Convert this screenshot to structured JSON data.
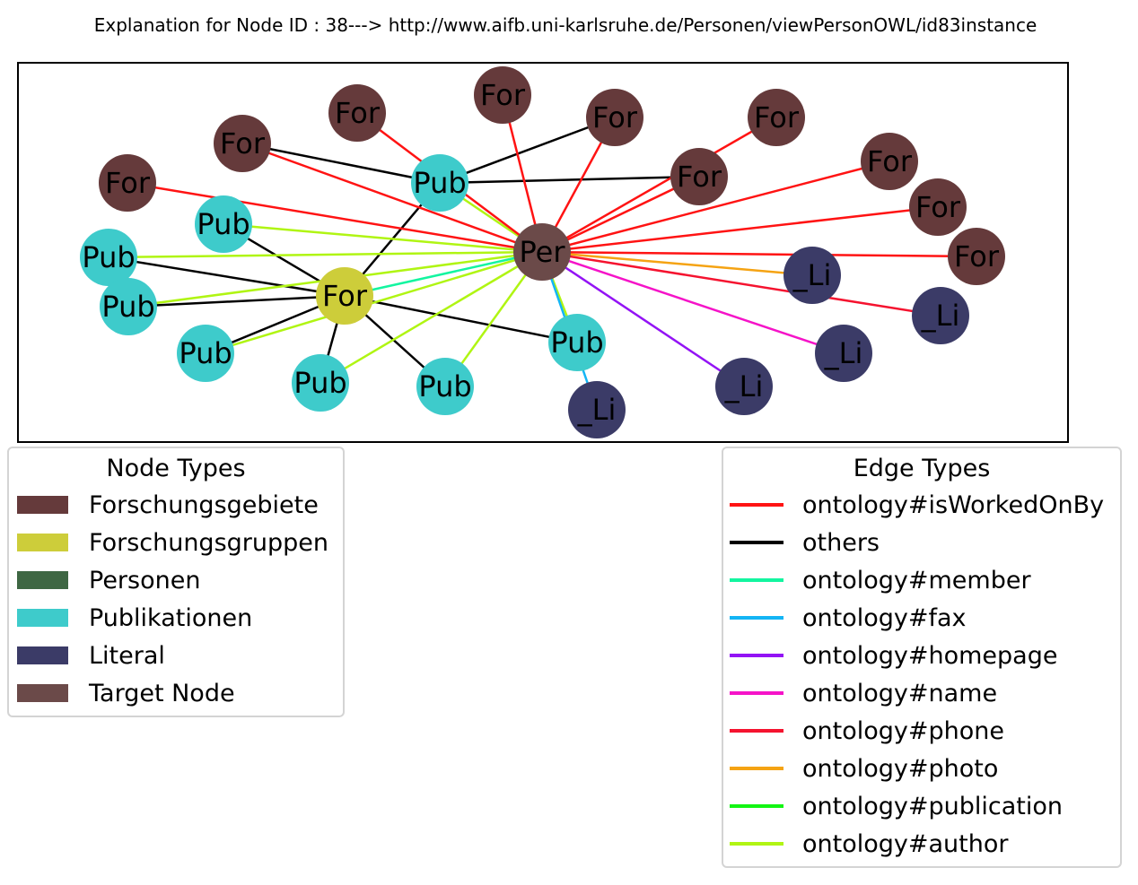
{
  "title": "Explanation for Node ID : 38---> http://www.aifb.uni-karlsruhe.de/Personen/viewPersonOWL/id83instance",
  "node_types": {
    "title": "Node Types",
    "items": [
      {
        "label": "Forschungsgebiete",
        "color": "#653a3b"
      },
      {
        "label": "Forschungsgruppen",
        "color": "#cdcd3a"
      },
      {
        "label": "Personen",
        "color": "#3e6743"
      },
      {
        "label": "Publikationen",
        "color": "#3ecbcb"
      },
      {
        "label": "Literal",
        "color": "#3b3b67"
      },
      {
        "label": "Target Node",
        "color": "#6b4a49"
      }
    ]
  },
  "edge_types": {
    "title": "Edge Types",
    "items": [
      {
        "label": "ontology#isWorkedOnBy",
        "color": "#ff1313"
      },
      {
        "label": "others",
        "color": "#000000"
      },
      {
        "label": "ontology#member",
        "color": "#13f5a0"
      },
      {
        "label": "ontology#fax",
        "color": "#13b5f5"
      },
      {
        "label": "ontology#homepage",
        "color": "#9313f5"
      },
      {
        "label": "ontology#name",
        "color": "#f513c8"
      },
      {
        "label": "ontology#phone",
        "color": "#f5132f"
      },
      {
        "label": "ontology#photo",
        "color": "#f5a313"
      },
      {
        "label": "ontology#publication",
        "color": "#13f513"
      },
      {
        "label": "ontology#author",
        "color": "#b0f513"
      }
    ]
  },
  "graph": {
    "nodes": [
      {
        "id": "target",
        "label": "Per",
        "type": "Target Node"
      },
      {
        "id": "grp",
        "label": "For",
        "type": "Forschungsgruppen"
      },
      {
        "id": "pubTop",
        "label": "Pub",
        "type": "Publikationen"
      },
      {
        "id": "pub2",
        "label": "Pub",
        "type": "Publikationen"
      },
      {
        "id": "pub3",
        "label": "Pub",
        "type": "Publikationen"
      },
      {
        "id": "pub4",
        "label": "Pub",
        "type": "Publikationen"
      },
      {
        "id": "pub5",
        "label": "Pub",
        "type": "Publikationen"
      },
      {
        "id": "pub6",
        "label": "Pub",
        "type": "Publikationen"
      },
      {
        "id": "pub7",
        "label": "Pub",
        "type": "Publikationen"
      },
      {
        "id": "pubR",
        "label": "Pub",
        "type": "Publikationen"
      },
      {
        "id": "for1",
        "label": "For",
        "type": "Forschungsgebiete"
      },
      {
        "id": "for2",
        "label": "For",
        "type": "Forschungsgebiete"
      },
      {
        "id": "for3",
        "label": "For",
        "type": "Forschungsgebiete"
      },
      {
        "id": "for4",
        "label": "For",
        "type": "Forschungsgebiete"
      },
      {
        "id": "for5",
        "label": "For",
        "type": "Forschungsgebiete"
      },
      {
        "id": "forMid",
        "label": "For",
        "type": "Forschungsgebiete"
      },
      {
        "id": "for7",
        "label": "For",
        "type": "Forschungsgebiete"
      },
      {
        "id": "for8",
        "label": "For",
        "type": "Forschungsgebiete"
      },
      {
        "id": "for9",
        "label": "For",
        "type": "Forschungsgebiete"
      },
      {
        "id": "for10",
        "label": "For",
        "type": "Forschungsgebiete"
      },
      {
        "id": "li1",
        "label": "_Li",
        "type": "Literal"
      },
      {
        "id": "li2",
        "label": "_Li",
        "type": "Literal"
      },
      {
        "id": "li3",
        "label": "_Li",
        "type": "Literal"
      },
      {
        "id": "li4",
        "label": "_Li",
        "type": "Literal"
      },
      {
        "id": "li5",
        "label": "_Li",
        "type": "Literal"
      }
    ],
    "edges": [
      {
        "source": "grp",
        "target": "pubTop",
        "type": "others"
      },
      {
        "source": "grp",
        "target": "pub2",
        "type": "others"
      },
      {
        "source": "grp",
        "target": "pub3",
        "type": "others"
      },
      {
        "source": "grp",
        "target": "pub4",
        "type": "others"
      },
      {
        "source": "grp",
        "target": "pub5",
        "type": "others"
      },
      {
        "source": "grp",
        "target": "pub6",
        "type": "others"
      },
      {
        "source": "grp",
        "target": "pub7",
        "type": "others"
      },
      {
        "source": "grp",
        "target": "pubR",
        "type": "others"
      },
      {
        "source": "for2",
        "target": "pubTop",
        "type": "others"
      },
      {
        "source": "pubTop",
        "target": "for5",
        "type": "others"
      },
      {
        "source": "pubTop",
        "target": "forMid",
        "type": "others"
      },
      {
        "source": "target",
        "target": "pubTop",
        "type": "ontology#author"
      },
      {
        "source": "target",
        "target": "pub2",
        "type": "ontology#author"
      },
      {
        "source": "target",
        "target": "pub3",
        "type": "ontology#author"
      },
      {
        "source": "target",
        "target": "pub4",
        "type": "ontology#author"
      },
      {
        "source": "target",
        "target": "pub5",
        "type": "ontology#author"
      },
      {
        "source": "target",
        "target": "pub6",
        "type": "ontology#author"
      },
      {
        "source": "target",
        "target": "pub7",
        "type": "ontology#author"
      },
      {
        "source": "target",
        "target": "pubR",
        "type": "ontology#author"
      },
      {
        "source": "target",
        "target": "grp",
        "type": "ontology#member"
      },
      {
        "source": "for1",
        "target": "target",
        "type": "ontology#isWorkedOnBy"
      },
      {
        "source": "for2",
        "target": "target",
        "type": "ontology#isWorkedOnBy"
      },
      {
        "source": "for3",
        "target": "target",
        "type": "ontology#isWorkedOnBy"
      },
      {
        "source": "for4",
        "target": "target",
        "type": "ontology#isWorkedOnBy"
      },
      {
        "source": "for5",
        "target": "target",
        "type": "ontology#isWorkedOnBy"
      },
      {
        "source": "forMid",
        "target": "target",
        "type": "ontology#isWorkedOnBy"
      },
      {
        "source": "for7",
        "target": "target",
        "type": "ontology#isWorkedOnBy"
      },
      {
        "source": "for8",
        "target": "target",
        "type": "ontology#isWorkedOnBy"
      },
      {
        "source": "for9",
        "target": "target",
        "type": "ontology#isWorkedOnBy"
      },
      {
        "source": "for10",
        "target": "target",
        "type": "ontology#isWorkedOnBy"
      },
      {
        "source": "target",
        "target": "li1",
        "type": "ontology#photo"
      },
      {
        "source": "target",
        "target": "li2",
        "type": "ontology#phone"
      },
      {
        "source": "target",
        "target": "li3",
        "type": "ontology#name"
      },
      {
        "source": "target",
        "target": "li4",
        "type": "ontology#homepage"
      },
      {
        "source": "target",
        "target": "li5",
        "type": "ontology#fax"
      }
    ]
  }
}
